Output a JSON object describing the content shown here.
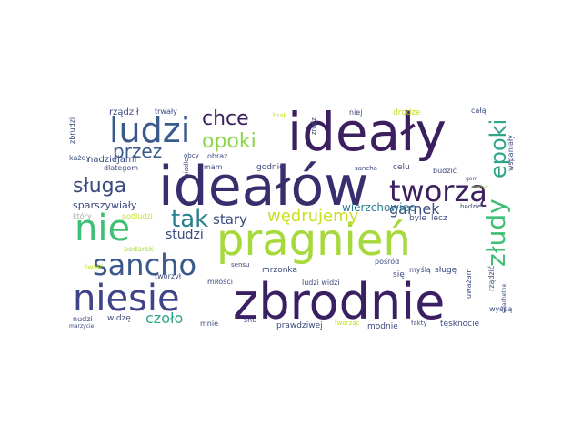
{
  "words": {
    "idealy": "ideały",
    "idealow": "ideałów",
    "pragnien": "pragnień",
    "zbrodnie": "zbrodnie",
    "niesie": "niesie",
    "ludzi": "ludzi",
    "nie": "nie",
    "sancho": "sancho",
    "tworza": "tworzą",
    "chce": "chce",
    "opoki": "opoki",
    "przez": "przez",
    "sluga": "sługa",
    "tak": "tak",
    "zludy": "złudy",
    "epoki": "epoki",
    "wedrujemy": "wędrujemy",
    "stary": "stary",
    "studzi": "studzi",
    "garnek": "garnek",
    "czolo": "czoło",
    "wierzchowiec": "wierzchowiec",
    "sparszywialy": "sparszywiały",
    "nadziejami": "nadziejami",
    "rzadzil": "rządził",
    "trwaly": "trwały",
    "zbrudzi": "zbrudzi",
    "kazdy": "każdy",
    "dlategom": "dlategom",
    "ktory": "który",
    "podludzi": "podludzi",
    "podarek": "podarek",
    "swiat": "świat",
    "tworzyl": "tworzył",
    "milosci": "miłości",
    "nudzi": "nudzi",
    "widze": "widzę",
    "marzyciel": "marzyciel",
    "mnie": "mnie",
    "snu": "snu",
    "prawdziwej": "prawdziwej",
    "tworzac": "tworząc",
    "modnie": "modnie",
    "fakty": "fakty",
    "tesknocie": "tęsknocie",
    "wyspa": "wyspą",
    "rzadzic": "rządzić",
    "uwazam": "uważam",
    "myśla": "myślą",
    "sluge": "sługę",
    "sie": "się",
    "posrod": "pośród",
    "ludzi_widzi": "ludzi widzi",
    "mrzonka": "mrzonka",
    "sensu": "sensu",
    "lecz": "lecz",
    "byle": "byle",
    "bedzie": "będzie",
    "celu": "celu",
    "budzic": "budzić",
    "sancha": "sancha",
    "szlachetne": "szlachetne",
    "praktyk": "praktyk",
    "gom": "gom",
    "wspanialy": "wspaniały",
    "cala": "całą",
    "drodze": "drodze",
    "niej": "niej",
    "zrodzi": "zrodzi",
    "brak": "brak",
    "obcy": "obcy",
    "obraz": "obraz",
    "mam": "mam",
    "godnie": "godnie",
    "siodle": "siodle"
  }
}
